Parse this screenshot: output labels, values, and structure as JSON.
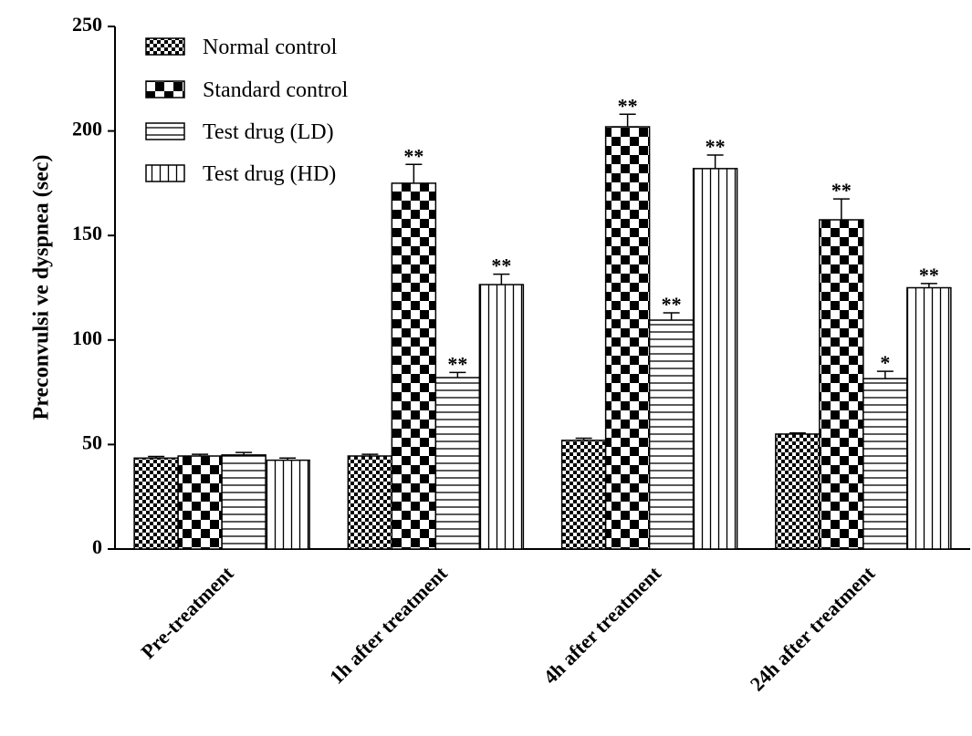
{
  "chart_data": {
    "type": "bar",
    "title": "",
    "xlabel": "",
    "ylabel": "Preconvulsi ve dyspnea (sec)",
    "ylim": [
      0,
      250
    ],
    "yticks": [
      0,
      50,
      100,
      150,
      200,
      250
    ],
    "grid": false,
    "legend_position": "top-left",
    "categories": [
      "Pre-treatment",
      "1h after treatment",
      "4h after treatment",
      "24h after treatment"
    ],
    "series": [
      {
        "name": "Normal control",
        "pattern": "fine-checker",
        "values": [
          43.5,
          44.5,
          52,
          55
        ],
        "errors": [
          0.8,
          0.8,
          1,
          0.5
        ],
        "significance": [
          "",
          "",
          "",
          ""
        ]
      },
      {
        "name": "Standard control",
        "pattern": "coarse-checker",
        "values": [
          44.5,
          175,
          202,
          157.5
        ],
        "errors": [
          0.8,
          9,
          6,
          10
        ],
        "significance": [
          "",
          "**",
          "**",
          "**"
        ]
      },
      {
        "name": "Test drug (LD)",
        "pattern": "horizontal-lines",
        "values": [
          45,
          82,
          109.5,
          81.5
        ],
        "errors": [
          1.2,
          2.5,
          3.5,
          3.5
        ],
        "significance": [
          "",
          "**",
          "**",
          "*"
        ]
      },
      {
        "name": "Test drug (HD)",
        "pattern": "vertical-lines",
        "values": [
          42.5,
          126.5,
          182,
          125
        ],
        "errors": [
          1,
          5,
          6.5,
          2
        ],
        "significance": [
          "",
          "**",
          "**",
          "**"
        ]
      }
    ]
  }
}
